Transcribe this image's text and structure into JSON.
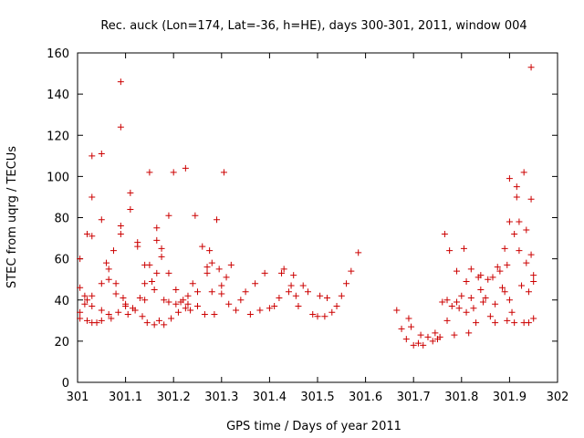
{
  "chart_data": {
    "type": "scatter",
    "title": "Rec. auck (Lon=174, Lat=-36, h=HE), days 300-301, 2011, window 004",
    "xlabel": "GPS time / Days of year 2011",
    "ylabel": "STEC from uqrg / TECUs",
    "xlim": [
      301,
      302
    ],
    "ylim": [
      0,
      160
    ],
    "x_ticks": [
      301,
      301.1,
      301.2,
      301.3,
      301.4,
      301.5,
      301.6,
      301.7,
      301.8,
      301.9,
      302
    ],
    "x_tick_labels": [
      "301",
      "301.1",
      "301.2",
      "301.3",
      "301.4",
      "301.5",
      "301.6",
      "301.7",
      "301.8",
      "301.9",
      "302"
    ],
    "y_ticks": [
      0,
      20,
      40,
      60,
      80,
      100,
      120,
      140,
      160
    ],
    "y_tick_labels": [
      "0",
      "20",
      "40",
      "60",
      "80",
      "100",
      "120",
      "140",
      "160"
    ],
    "marker": "+",
    "color": "#cc0000",
    "grid": false,
    "points": [
      [
        301.005,
        60
      ],
      [
        301.005,
        46
      ],
      [
        301.005,
        34
      ],
      [
        301.005,
        31
      ],
      [
        301.015,
        42
      ],
      [
        301.015,
        38
      ],
      [
        301.02,
        72
      ],
      [
        301.02,
        40
      ],
      [
        301.02,
        30
      ],
      [
        301.03,
        110
      ],
      [
        301.03,
        90
      ],
      [
        301.03,
        71
      ],
      [
        301.03,
        42
      ],
      [
        301.03,
        37
      ],
      [
        301.03,
        29
      ],
      [
        301.04,
        29
      ],
      [
        301.05,
        111
      ],
      [
        301.05,
        79
      ],
      [
        301.05,
        48
      ],
      [
        301.05,
        35
      ],
      [
        301.05,
        30
      ],
      [
        301.06,
        58
      ],
      [
        301.065,
        55
      ],
      [
        301.065,
        50
      ],
      [
        301.065,
        33
      ],
      [
        301.07,
        31
      ],
      [
        301.075,
        64
      ],
      [
        301.08,
        48
      ],
      [
        301.08,
        43
      ],
      [
        301.085,
        34
      ],
      [
        301.09,
        146
      ],
      [
        301.09,
        124
      ],
      [
        301.09,
        76
      ],
      [
        301.09,
        72
      ],
      [
        301.095,
        41
      ],
      [
        301.1,
        38
      ],
      [
        301.1,
        37
      ],
      [
        301.105,
        33
      ],
      [
        301.11,
        92
      ],
      [
        301.11,
        84
      ],
      [
        301.115,
        36
      ],
      [
        301.12,
        35
      ],
      [
        301.125,
        68
      ],
      [
        301.125,
        66
      ],
      [
        301.13,
        41
      ],
      [
        301.135,
        32
      ],
      [
        301.14,
        57
      ],
      [
        301.14,
        48
      ],
      [
        301.14,
        40
      ],
      [
        301.145,
        29
      ],
      [
        301.15,
        102
      ],
      [
        301.15,
        57
      ],
      [
        301.155,
        49
      ],
      [
        301.16,
        45
      ],
      [
        301.16,
        28
      ],
      [
        301.165,
        75
      ],
      [
        301.165,
        69
      ],
      [
        301.165,
        53
      ],
      [
        301.17,
        30
      ],
      [
        301.175,
        65
      ],
      [
        301.175,
        61
      ],
      [
        301.18,
        40
      ],
      [
        301.18,
        28
      ],
      [
        301.19,
        81
      ],
      [
        301.19,
        53
      ],
      [
        301.19,
        39
      ],
      [
        301.195,
        31
      ],
      [
        301.2,
        102
      ],
      [
        301.205,
        45
      ],
      [
        301.205,
        38
      ],
      [
        301.21,
        34
      ],
      [
        301.215,
        39
      ],
      [
        301.22,
        40
      ],
      [
        301.225,
        36
      ],
      [
        301.225,
        104
      ],
      [
        301.23,
        42
      ],
      [
        301.23,
        38
      ],
      [
        301.235,
        35
      ],
      [
        301.24,
        48
      ],
      [
        301.245,
        81
      ],
      [
        301.25,
        44
      ],
      [
        301.25,
        37
      ],
      [
        301.26,
        66
      ],
      [
        301.265,
        33
      ],
      [
        301.27,
        56
      ],
      [
        301.27,
        53
      ],
      [
        301.275,
        64
      ],
      [
        301.28,
        58
      ],
      [
        301.28,
        44
      ],
      [
        301.285,
        33
      ],
      [
        301.29,
        79
      ],
      [
        301.295,
        55
      ],
      [
        301.3,
        47
      ],
      [
        301.3,
        43
      ],
      [
        301.305,
        102
      ],
      [
        301.31,
        51
      ],
      [
        301.315,
        38
      ],
      [
        301.32,
        57
      ],
      [
        301.33,
        35
      ],
      [
        301.34,
        40
      ],
      [
        301.35,
        44
      ],
      [
        301.36,
        33
      ],
      [
        301.37,
        48
      ],
      [
        301.38,
        35
      ],
      [
        301.39,
        53
      ],
      [
        301.4,
        36
      ],
      [
        301.41,
        37
      ],
      [
        301.42,
        41
      ],
      [
        301.425,
        53
      ],
      [
        301.43,
        55
      ],
      [
        301.44,
        44
      ],
      [
        301.445,
        47
      ],
      [
        301.45,
        52
      ],
      [
        301.455,
        42
      ],
      [
        301.46,
        37
      ],
      [
        301.47,
        47
      ],
      [
        301.48,
        44
      ],
      [
        301.49,
        33
      ],
      [
        301.5,
        32
      ],
      [
        301.505,
        42
      ],
      [
        301.515,
        32
      ],
      [
        301.52,
        41
      ],
      [
        301.53,
        34
      ],
      [
        301.54,
        37
      ],
      [
        301.55,
        42
      ],
      [
        301.56,
        48
      ],
      [
        301.57,
        54
      ],
      [
        301.585,
        63
      ],
      [
        301.665,
        35
      ],
      [
        301.675,
        26
      ],
      [
        301.685,
        21
      ],
      [
        301.69,
        31
      ],
      [
        301.695,
        27
      ],
      [
        301.7,
        18
      ],
      [
        301.71,
        19
      ],
      [
        301.715,
        23
      ],
      [
        301.72,
        18
      ],
      [
        301.73,
        22
      ],
      [
        301.74,
        20
      ],
      [
        301.745,
        24
      ],
      [
        301.75,
        21
      ],
      [
        301.755,
        22
      ],
      [
        301.76,
        39
      ],
      [
        301.765,
        72
      ],
      [
        301.77,
        40
      ],
      [
        301.77,
        30
      ],
      [
        301.775,
        64
      ],
      [
        301.78,
        37
      ],
      [
        301.785,
        23
      ],
      [
        301.79,
        54
      ],
      [
        301.79,
        39
      ],
      [
        301.795,
        36
      ],
      [
        301.8,
        42
      ],
      [
        301.805,
        65
      ],
      [
        301.81,
        49
      ],
      [
        301.81,
        34
      ],
      [
        301.815,
        24
      ],
      [
        301.82,
        55
      ],
      [
        301.82,
        41
      ],
      [
        301.825,
        36
      ],
      [
        301.83,
        29
      ],
      [
        301.835,
        51
      ],
      [
        301.84,
        52
      ],
      [
        301.84,
        45
      ],
      [
        301.845,
        39
      ],
      [
        301.85,
        41
      ],
      [
        301.855,
        50
      ],
      [
        301.86,
        32
      ],
      [
        301.865,
        51
      ],
      [
        301.87,
        38
      ],
      [
        301.87,
        29
      ],
      [
        301.875,
        56
      ],
      [
        301.88,
        54
      ],
      [
        301.885,
        46
      ],
      [
        301.89,
        65
      ],
      [
        301.89,
        44
      ],
      [
        301.895,
        57
      ],
      [
        301.895,
        30
      ],
      [
        301.9,
        99
      ],
      [
        301.9,
        78
      ],
      [
        301.9,
        40
      ],
      [
        301.905,
        34
      ],
      [
        301.91,
        72
      ],
      [
        301.91,
        29
      ],
      [
        301.915,
        95
      ],
      [
        301.915,
        90
      ],
      [
        301.92,
        78
      ],
      [
        301.92,
        64
      ],
      [
        301.925,
        47
      ],
      [
        301.93,
        29
      ],
      [
        301.93,
        102
      ],
      [
        301.935,
        74
      ],
      [
        301.935,
        58
      ],
      [
        301.94,
        44
      ],
      [
        301.94,
        29
      ],
      [
        301.945,
        153
      ],
      [
        301.945,
        89
      ],
      [
        301.945,
        62
      ],
      [
        301.95,
        52
      ],
      [
        301.95,
        49
      ],
      [
        301.95,
        31
      ]
    ]
  }
}
